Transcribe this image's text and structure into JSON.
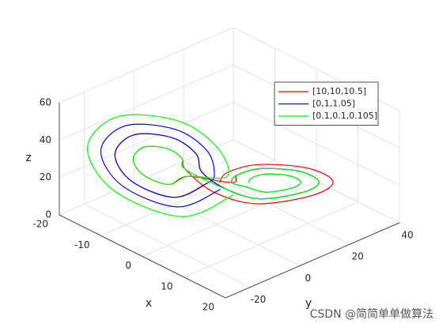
{
  "chart_data": {
    "type": "line3d",
    "xlabel": "x",
    "ylabel": "y",
    "zlabel": "z",
    "xlim": [
      -20,
      20
    ],
    "ylim": [
      -30,
      40
    ],
    "zlim": [
      0,
      60
    ],
    "xticks": [
      -20,
      -10,
      0,
      10,
      20
    ],
    "yticks": [
      -20,
      0,
      20,
      40
    ],
    "zticks": [
      0,
      20,
      40,
      60
    ],
    "grid": true,
    "legend_position": "northeast",
    "watermark": "CSDN @简简单单做算法",
    "series": [
      {
        "name": "[10,10,10.5]",
        "color": "#ff0000",
        "x": [
          -2,
          -5,
          -11,
          -15,
          -14,
          -9,
          -5,
          -3,
          2,
          5,
          11,
          15,
          14,
          9,
          5,
          3,
          -4.6,
          -6.4,
          -10,
          -12.4,
          -11.8,
          -8.8,
          -6.4,
          -5.2,
          0,
          4,
          11.8,
          17,
          15.7,
          9.2,
          4,
          1.4
        ],
        "y": [
          -1,
          -9,
          -16,
          -16,
          -10,
          -3,
          0,
          -1,
          1,
          9,
          16,
          16,
          10,
          3,
          0,
          1,
          -4,
          -8.8,
          -13,
          -13,
          -9.4,
          -5.2,
          -3.4,
          -4,
          -1.3,
          9.2,
          18.3,
          18.3,
          10.5,
          1.4,
          -2.6,
          -1.3
        ],
        "z": [
          20,
          14,
          20,
          30,
          38,
          38,
          32,
          25,
          20,
          14,
          20,
          30,
          38,
          38,
          32,
          25,
          22.8,
          19.2,
          22.8,
          28.8,
          33.6,
          33.6,
          30,
          25.8,
          17.9,
          10.1,
          17.9,
          31,
          41.3,
          41.3,
          33.5,
          24.4
        ]
      },
      {
        "name": "[0,1,1.05]",
        "color": "#0000ff",
        "x": [
          0,
          -4,
          -11.8,
          -17,
          -15.7,
          -9.2,
          -4,
          -1.4,
          -2,
          -5,
          -11,
          -15,
          -14,
          -9,
          -5,
          -3,
          2,
          5,
          11,
          15,
          14,
          9,
          5,
          3,
          4.6,
          6.4,
          10,
          12.4,
          11.8,
          8.8,
          6.4,
          5.2
        ],
        "y": [
          1.3,
          -9.2,
          -18.3,
          -18.3,
          -10.5,
          -1.4,
          2.6,
          1.3,
          -1,
          -9,
          -16,
          -16,
          -10,
          -3,
          0,
          -1,
          1,
          9,
          16,
          16,
          10,
          3,
          0,
          1,
          4,
          8.8,
          13,
          13,
          9.4,
          5.2,
          3.4,
          4
        ],
        "z": [
          17.9,
          10.1,
          17.9,
          31,
          41.3,
          41.3,
          33.5,
          24.4,
          20,
          14,
          20,
          30,
          38,
          38,
          32,
          25,
          20,
          14,
          20,
          30,
          38,
          38,
          32,
          25,
          22.8,
          19.2,
          22.8,
          28.8,
          33.6,
          33.6,
          30,
          25.8
        ]
      },
      {
        "name": "[0.1,0.1,0.105]",
        "color": "#00ff00",
        "x": [
          1.9,
          -2.9,
          -12.5,
          -18.9,
          -17.3,
          -9.3,
          -2.9,
          0.3,
          -4.6,
          -6.4,
          -10,
          -12.4,
          -11.8,
          -8.8,
          -6.4,
          -5.2,
          2,
          5,
          11,
          15,
          14,
          9,
          5,
          3,
          4.6,
          6.4,
          10,
          12.4,
          11.8,
          8.8,
          6.4,
          5.2
        ],
        "y": [
          3.5,
          -9.3,
          -20.5,
          -20.5,
          -10.9,
          0.3,
          5.1,
          3.5,
          -4,
          -8.8,
          -13,
          -13,
          -9.4,
          -5.2,
          -3.4,
          -4,
          1,
          9,
          16,
          16,
          10,
          3,
          0,
          1,
          4,
          8.8,
          13,
          13,
          9.4,
          5.2,
          3.4,
          4
        ],
        "z": [
          15.8,
          6.2,
          15.8,
          31.8,
          44.6,
          44.6,
          34.6,
          23.8,
          22.8,
          19.2,
          22.8,
          28.8,
          33.6,
          33.6,
          30,
          25.8,
          20,
          14,
          20,
          30,
          38,
          38,
          32,
          25,
          22.8,
          19.2,
          22.8,
          28.8,
          33.6,
          33.6,
          30,
          25.8
        ]
      }
    ]
  }
}
